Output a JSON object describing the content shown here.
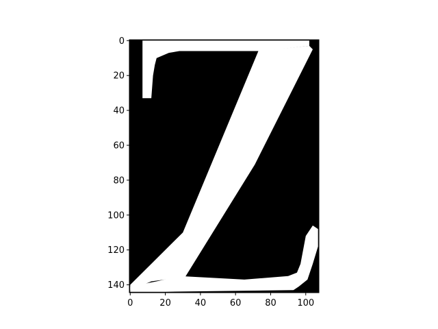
{
  "chart_data": {
    "type": "heatmap",
    "title": "",
    "xlabel": "",
    "ylabel": "",
    "image_shape": [
      145,
      108
    ],
    "colormap": "gray",
    "value_range": [
      0,
      1
    ],
    "background_value": 0,
    "foreground_value": 1,
    "depicted_glyph": "Z",
    "xlim": [
      -0.5,
      107.5
    ],
    "ylim": [
      144.5,
      -0.5
    ],
    "x_ticks": [
      0,
      20,
      40,
      60,
      80,
      100
    ],
    "y_ticks": [
      0,
      20,
      40,
      60,
      80,
      100,
      120,
      140
    ],
    "x_tick_labels": [
      "0",
      "20",
      "40",
      "60",
      "80",
      "100"
    ],
    "y_tick_labels": [
      "0",
      "20",
      "40",
      "60",
      "80",
      "100",
      "120",
      "140"
    ],
    "foreground_shapes": [
      {
        "name": "top-bar",
        "points": [
          [
            7,
            0
          ],
          [
            102,
            0
          ],
          [
            102,
            3
          ],
          [
            75,
            6
          ],
          [
            28,
            6
          ],
          [
            22,
            7
          ],
          [
            15,
            10
          ],
          [
            14,
            14
          ],
          [
            13,
            20
          ],
          [
            12,
            33
          ],
          [
            7,
            33
          ]
        ]
      },
      {
        "name": "diagonal-stroke",
        "points": [
          [
            73,
            6
          ],
          [
            102,
            3
          ],
          [
            104,
            5
          ],
          [
            71,
            71
          ],
          [
            31,
            136
          ],
          [
            27,
            136
          ],
          [
            12,
            138
          ],
          [
            0,
            143
          ],
          [
            0,
            140
          ],
          [
            30,
            110
          ]
        ]
      },
      {
        "name": "bottom-bar",
        "points": [
          [
            28,
            135
          ],
          [
            65,
            137
          ],
          [
            90,
            135
          ],
          [
            95,
            133
          ],
          [
            97,
            128
          ],
          [
            100,
            112
          ],
          [
            104,
            106
          ],
          [
            107,
            108
          ],
          [
            107,
            118
          ],
          [
            104,
            128
          ],
          [
            101,
            137
          ],
          [
            96,
            141
          ],
          [
            93,
            143
          ],
          [
            20,
            144
          ],
          [
            0,
            144
          ],
          [
            0,
            141
          ],
          [
            15,
            138
          ]
        ]
      }
    ]
  }
}
